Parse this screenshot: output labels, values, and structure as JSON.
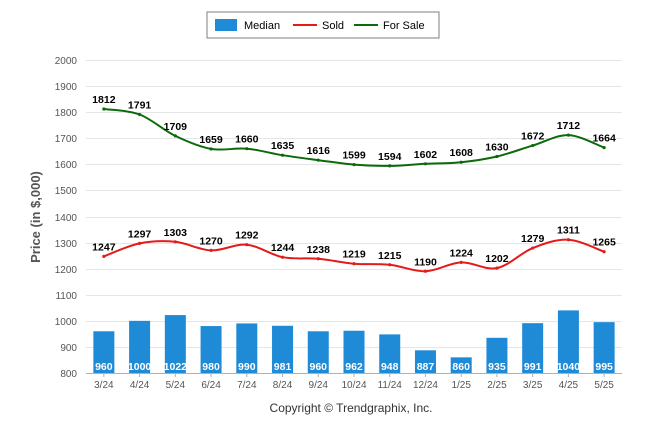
{
  "chart_data": {
    "type": "bar+line",
    "categories": [
      "3/24",
      "4/24",
      "5/24",
      "6/24",
      "7/24",
      "8/24",
      "9/24",
      "10/24",
      "11/24",
      "12/24",
      "1/25",
      "2/25",
      "3/25",
      "4/25",
      "5/25"
    ],
    "series": [
      {
        "name": "Median",
        "kind": "bar",
        "color": "#1f8ad6",
        "values": [
          960,
          1000,
          1022,
          980,
          990,
          981,
          960,
          962,
          948,
          887,
          860,
          935,
          991,
          1040,
          995
        ]
      },
      {
        "name": "Sold",
        "kind": "line",
        "color": "#e31b1b",
        "values": [
          1247,
          1297,
          1303,
          1270,
          1292,
          1244,
          1238,
          1219,
          1215,
          1190,
          1224,
          1202,
          1279,
          1311,
          1265
        ]
      },
      {
        "name": "For Sale",
        "kind": "line",
        "color": "#0b6b0b",
        "values": [
          1812,
          1791,
          1709,
          1659,
          1660,
          1635,
          1616,
          1599,
          1594,
          1602,
          1608,
          1630,
          1672,
          1712,
          1664
        ]
      }
    ],
    "ylabel": "Price (in $,000)",
    "ylim": [
      800,
      2000
    ],
    "yticks": [
      800,
      900,
      1000,
      1100,
      1200,
      1300,
      1400,
      1500,
      1600,
      1700,
      1800,
      1900,
      2000
    ],
    "grid": true,
    "legend": "top-center"
  },
  "footer": {
    "copyright": "Copyright © Trendgraphix, Inc."
  }
}
